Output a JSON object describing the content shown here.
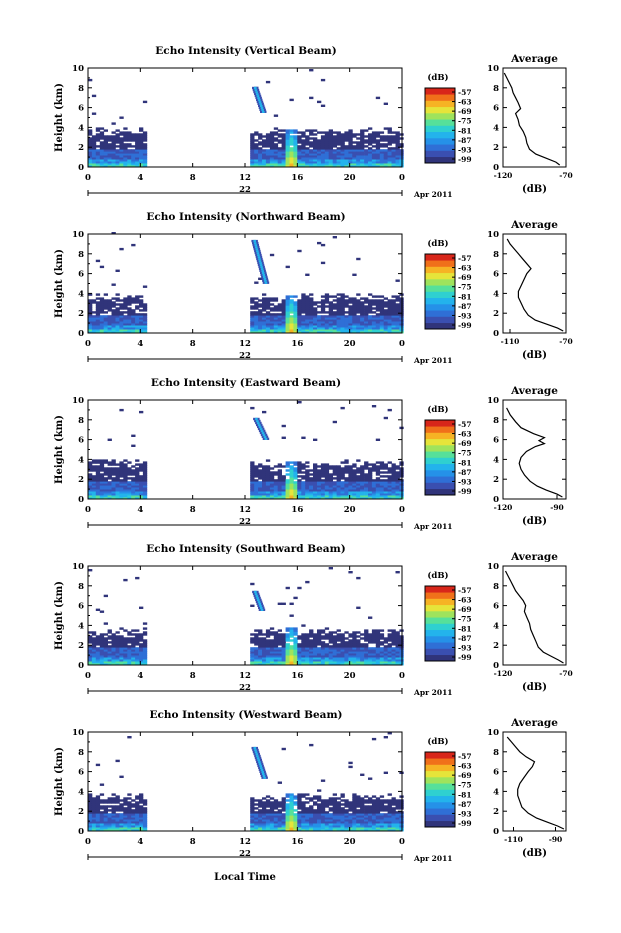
{
  "colors": {
    "colorbar": [
      "#30347a",
      "#3a4fb0",
      "#2f6fd6",
      "#2591e8",
      "#23b3ec",
      "#2fd0d0",
      "#56e09a",
      "#9fe35c",
      "#e6e43a",
      "#f6b324",
      "#f0701a",
      "#d8261a"
    ],
    "profile_line": "#000000"
  },
  "figure": {
    "xlabel": "Local Time",
    "date_label": "Apr 2011",
    "day_label": "22"
  },
  "chart_data": [
    {
      "type": "heatmap",
      "title": "Echo Intensity (Vertical Beam)",
      "ylabel": "Height (km)",
      "xlabel": "Local Time",
      "x_ticks": [
        "0",
        "4",
        "8",
        "12",
        "16",
        "20",
        "0"
      ],
      "y_ticks": [
        "0",
        "2",
        "4",
        "6",
        "8",
        "10"
      ],
      "xlim": [
        0,
        24
      ],
      "ylim": [
        0,
        10
      ],
      "colorbar": {
        "label": "(dB)",
        "ticks": [
          "-57",
          "-63",
          "-69",
          "-75",
          "-81",
          "-87",
          "-93",
          "-99"
        ]
      },
      "data_periods": [
        [
          0,
          4.4
        ],
        [
          12.4,
          24
        ]
      ],
      "top_echo_km": 3.5,
      "elevated_patches": [
        {
          "t": [
            12.6,
            13.4
          ],
          "h": [
            5.5,
            8.0
          ]
        }
      ],
      "spike": {
        "t": 15.4,
        "h": 3.7
      },
      "profile": {
        "title": "Average",
        "xlabel": "(dB)",
        "x_ticks": [
          "-120",
          "-70"
        ],
        "xlim": [
          -120,
          -70
        ],
        "y_ticks": [
          "0",
          "2",
          "4",
          "6",
          "8",
          "10"
        ],
        "ylim": [
          0,
          10
        ],
        "points": [
          [
            -75,
            0.2
          ],
          [
            -78,
            0.5
          ],
          [
            -86,
            0.9
          ],
          [
            -94,
            1.3
          ],
          [
            -99,
            1.8
          ],
          [
            -101,
            2.4
          ],
          [
            -102,
            3.0
          ],
          [
            -104,
            3.6
          ],
          [
            -107,
            4.2
          ],
          [
            -108,
            4.8
          ],
          [
            -110,
            5.4
          ],
          [
            -106,
            5.9
          ],
          [
            -108,
            6.5
          ],
          [
            -110,
            7.0
          ],
          [
            -112,
            7.5
          ],
          [
            -113,
            8.0
          ],
          [
            -115,
            8.5
          ],
          [
            -117,
            9.0
          ],
          [
            -119,
            9.5
          ]
        ]
      }
    },
    {
      "type": "heatmap",
      "title": "Echo Intensity (Northward Beam)",
      "ylabel": "Height (km)",
      "xlabel": "Local Time",
      "x_ticks": [
        "0",
        "4",
        "8",
        "12",
        "16",
        "20",
        "0"
      ],
      "y_ticks": [
        "0",
        "2",
        "4",
        "6",
        "8",
        "10"
      ],
      "xlim": [
        0,
        24
      ],
      "ylim": [
        0,
        10
      ],
      "colorbar": {
        "label": "(dB)",
        "ticks": [
          "-57",
          "-63",
          "-69",
          "-75",
          "-81",
          "-87",
          "-93",
          "-99"
        ]
      },
      "data_periods": [
        [
          0,
          4.4
        ],
        [
          12.4,
          24
        ]
      ],
      "top_echo_km": 3.6,
      "elevated_patches": [
        {
          "t": [
            12.5,
            13.6
          ],
          "h": [
            5.0,
            9.3
          ]
        }
      ],
      "spike": {
        "t": 15.4,
        "h": 3.7
      },
      "profile": {
        "title": "Average",
        "xlabel": "(dB)",
        "x_ticks": [
          "-110",
          "-70"
        ],
        "xlim": [
          -115,
          -70
        ],
        "y_ticks": [
          "0",
          "2",
          "4",
          "6",
          "8",
          "10"
        ],
        "ylim": [
          0,
          10
        ],
        "points": [
          [
            -72,
            0.2
          ],
          [
            -76,
            0.5
          ],
          [
            -84,
            0.9
          ],
          [
            -92,
            1.3
          ],
          [
            -97,
            1.8
          ],
          [
            -100,
            2.4
          ],
          [
            -102,
            3.0
          ],
          [
            -104,
            3.6
          ],
          [
            -104,
            4.2
          ],
          [
            -102,
            4.8
          ],
          [
            -100,
            5.4
          ],
          [
            -98,
            6.0
          ],
          [
            -95,
            6.5
          ],
          [
            -98,
            7.0
          ],
          [
            -101,
            7.5
          ],
          [
            -104,
            8.0
          ],
          [
            -107,
            8.5
          ],
          [
            -110,
            9.0
          ],
          [
            -112,
            9.5
          ]
        ]
      }
    },
    {
      "type": "heatmap",
      "title": "Echo Intensity (Eastward Beam)",
      "ylabel": "Height (km)",
      "xlabel": "Local Time",
      "x_ticks": [
        "0",
        "4",
        "8",
        "12",
        "16",
        "20",
        "0"
      ],
      "y_ticks": [
        "0",
        "2",
        "4",
        "6",
        "8",
        "10"
      ],
      "xlim": [
        0,
        24
      ],
      "ylim": [
        0,
        10
      ],
      "colorbar": {
        "label": "(dB)",
        "ticks": [
          "-57",
          "-63",
          "-69",
          "-75",
          "-81",
          "-87",
          "-93",
          "-99"
        ]
      },
      "data_periods": [
        [
          0,
          4.4
        ],
        [
          12.4,
          24
        ]
      ],
      "top_echo_km": 3.5,
      "elevated_patches": [
        {
          "t": [
            12.6,
            13.6
          ],
          "h": [
            6.0,
            8.2
          ]
        }
      ],
      "spike": {
        "t": 15.4,
        "h": 3.7
      },
      "profile": {
        "title": "Average",
        "xlabel": "(dB)",
        "x_ticks": [
          "-120",
          "-90"
        ],
        "xlim": [
          -120,
          -85
        ],
        "y_ticks": [
          "0",
          "2",
          "4",
          "6",
          "8",
          "10"
        ],
        "ylim": [
          0,
          10
        ],
        "points": [
          [
            -87,
            0.2
          ],
          [
            -90,
            0.5
          ],
          [
            -96,
            0.9
          ],
          [
            -101,
            1.3
          ],
          [
            -105,
            1.8
          ],
          [
            -108,
            2.4
          ],
          [
            -110,
            3.0
          ],
          [
            -111,
            3.6
          ],
          [
            -110,
            4.2
          ],
          [
            -107,
            4.8
          ],
          [
            -102,
            5.3
          ],
          [
            -97,
            5.6
          ],
          [
            -100,
            5.9
          ],
          [
            -97,
            6.2
          ],
          [
            -103,
            6.6
          ],
          [
            -110,
            7.2
          ],
          [
            -113,
            7.8
          ],
          [
            -116,
            8.5
          ],
          [
            -118,
            9.2
          ]
        ]
      }
    },
    {
      "type": "heatmap",
      "title": "Echo Intensity (Southward Beam)",
      "ylabel": "Height (km)",
      "xlabel": "Local Time",
      "x_ticks": [
        "0",
        "4",
        "8",
        "12",
        "16",
        "20",
        "0"
      ],
      "y_ticks": [
        "0",
        "2",
        "4",
        "6",
        "8",
        "10"
      ],
      "xlim": [
        0,
        24
      ],
      "ylim": [
        0,
        10
      ],
      "colorbar": {
        "label": "(dB)",
        "ticks": [
          "-57",
          "-63",
          "-69",
          "-75",
          "-81",
          "-87",
          "-93",
          "-99"
        ]
      },
      "data_periods": [
        [
          0,
          4.4
        ],
        [
          12.4,
          24
        ]
      ],
      "top_echo_km": 3.3,
      "elevated_patches": [
        {
          "t": [
            12.6,
            13.3
          ],
          "h": [
            5.5,
            7.5
          ]
        }
      ],
      "spike": {
        "t": 15.4,
        "h": 3.7
      },
      "profile": {
        "title": "Average",
        "xlabel": "(dB)",
        "x_ticks": [
          "-120",
          "-70"
        ],
        "xlim": [
          -120,
          -70
        ],
        "y_ticks": [
          "0",
          "2",
          "4",
          "6",
          "8",
          "10"
        ],
        "ylim": [
          0,
          10
        ],
        "points": [
          [
            -72,
            0.2
          ],
          [
            -76,
            0.5
          ],
          [
            -82,
            0.9
          ],
          [
            -88,
            1.3
          ],
          [
            -92,
            1.8
          ],
          [
            -94,
            2.4
          ],
          [
            -96,
            3.0
          ],
          [
            -98,
            3.6
          ],
          [
            -99,
            4.2
          ],
          [
            -101,
            4.8
          ],
          [
            -103,
            5.4
          ],
          [
            -102,
            6.0
          ],
          [
            -104,
            6.5
          ],
          [
            -107,
            7.0
          ],
          [
            -110,
            7.5
          ],
          [
            -112,
            8.0
          ],
          [
            -114,
            8.5
          ],
          [
            -116,
            9.0
          ],
          [
            -118,
            9.5
          ]
        ]
      }
    },
    {
      "type": "heatmap",
      "title": "Echo Intensity (Westward Beam)",
      "ylabel": "Height (km)",
      "xlabel": "Local Time",
      "x_ticks": [
        "0",
        "4",
        "8",
        "12",
        "16",
        "20",
        "0"
      ],
      "y_ticks": [
        "0",
        "2",
        "4",
        "6",
        "8",
        "10"
      ],
      "xlim": [
        0,
        24
      ],
      "ylim": [
        0,
        10
      ],
      "colorbar": {
        "label": "(dB)",
        "ticks": [
          "-57",
          "-63",
          "-69",
          "-75",
          "-81",
          "-87",
          "-93",
          "-99"
        ]
      },
      "data_periods": [
        [
          0,
          4.4
        ],
        [
          12.4,
          24
        ]
      ],
      "top_echo_km": 3.4,
      "elevated_patches": [
        {
          "t": [
            12.5,
            13.5
          ],
          "h": [
            5.3,
            8.5
          ]
        }
      ],
      "spike": {
        "t": 15.4,
        "h": 3.7
      },
      "profile": {
        "title": "Average",
        "xlabel": "(dB)",
        "x_ticks": [
          "-110",
          "-90"
        ],
        "xlim": [
          -115,
          -85
        ],
        "y_ticks": [
          "0",
          "2",
          "4",
          "6",
          "8",
          "10"
        ],
        "ylim": [
          0,
          10
        ],
        "points": [
          [
            -86,
            0.2
          ],
          [
            -89,
            0.5
          ],
          [
            -94,
            0.9
          ],
          [
            -99,
            1.3
          ],
          [
            -103,
            1.8
          ],
          [
            -106,
            2.4
          ],
          [
            -107,
            3.0
          ],
          [
            -108,
            3.6
          ],
          [
            -108,
            4.2
          ],
          [
            -107,
            4.8
          ],
          [
            -105,
            5.4
          ],
          [
            -103,
            6.0
          ],
          [
            -101,
            6.5
          ],
          [
            -100,
            7.0
          ],
          [
            -104,
            7.5
          ],
          [
            -107,
            8.0
          ],
          [
            -109,
            8.5
          ],
          [
            -111,
            9.0
          ],
          [
            -113,
            9.5
          ]
        ]
      }
    }
  ]
}
